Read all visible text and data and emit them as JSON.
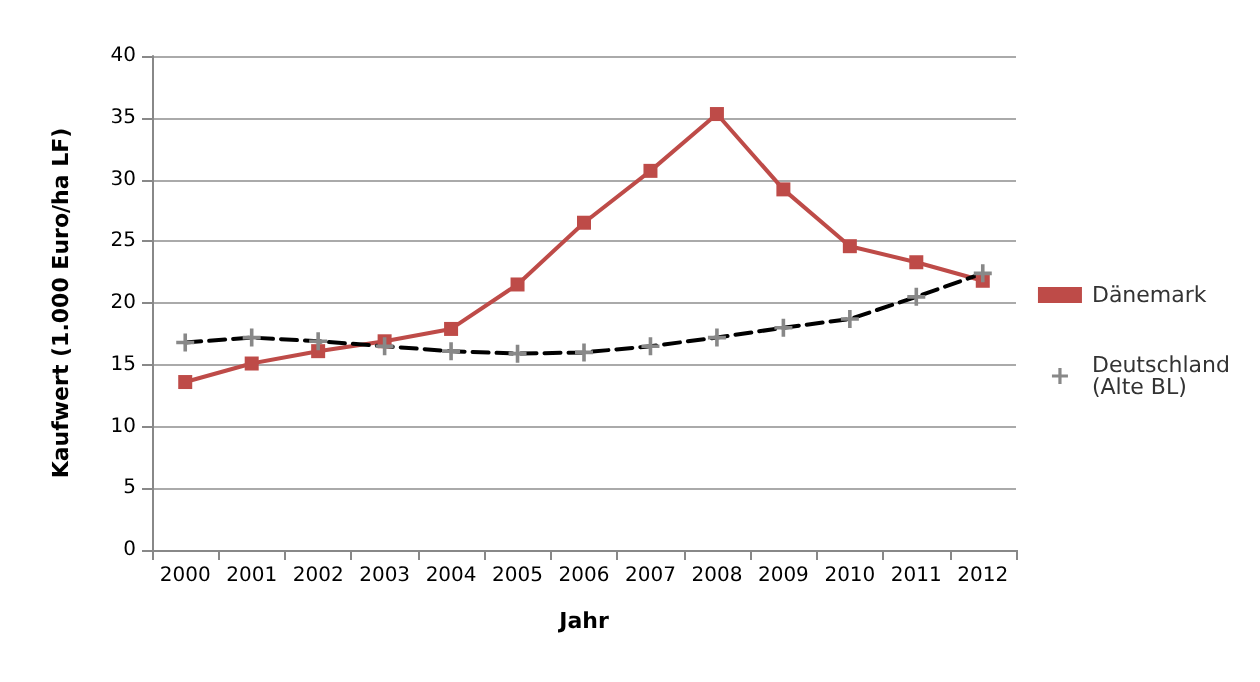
{
  "chart_data": {
    "type": "line",
    "xlabel": "Jahr",
    "ylabel": "Kaufwert (1.000 Euro/ha LF)",
    "categories": [
      "2000",
      "2001",
      "2002",
      "2003",
      "2004",
      "2005",
      "2006",
      "2007",
      "2008",
      "2009",
      "2010",
      "2011",
      "2012"
    ],
    "series": [
      {
        "name": "Dänemark",
        "color": "#be4b48",
        "marker": "square",
        "line_style": "solid",
        "values": [
          13.6,
          15.1,
          16.1,
          16.9,
          17.9,
          21.5,
          26.5,
          30.7,
          35.3,
          29.2,
          24.6,
          23.3,
          21.8
        ]
      },
      {
        "name": "Deutschland\n(Alte BL)",
        "color": "#000000",
        "marker": "cross",
        "line_style": "dashed",
        "values": [
          16.8,
          17.2,
          16.9,
          16.5,
          16.1,
          15.9,
          16.0,
          16.5,
          17.2,
          18.0,
          18.7,
          20.5,
          22.4
        ]
      }
    ],
    "ylim": [
      0,
      40
    ],
    "yticks": [
      0,
      5,
      10,
      15,
      20,
      25,
      30,
      35,
      40
    ],
    "grid": "y",
    "legend": "right"
  }
}
